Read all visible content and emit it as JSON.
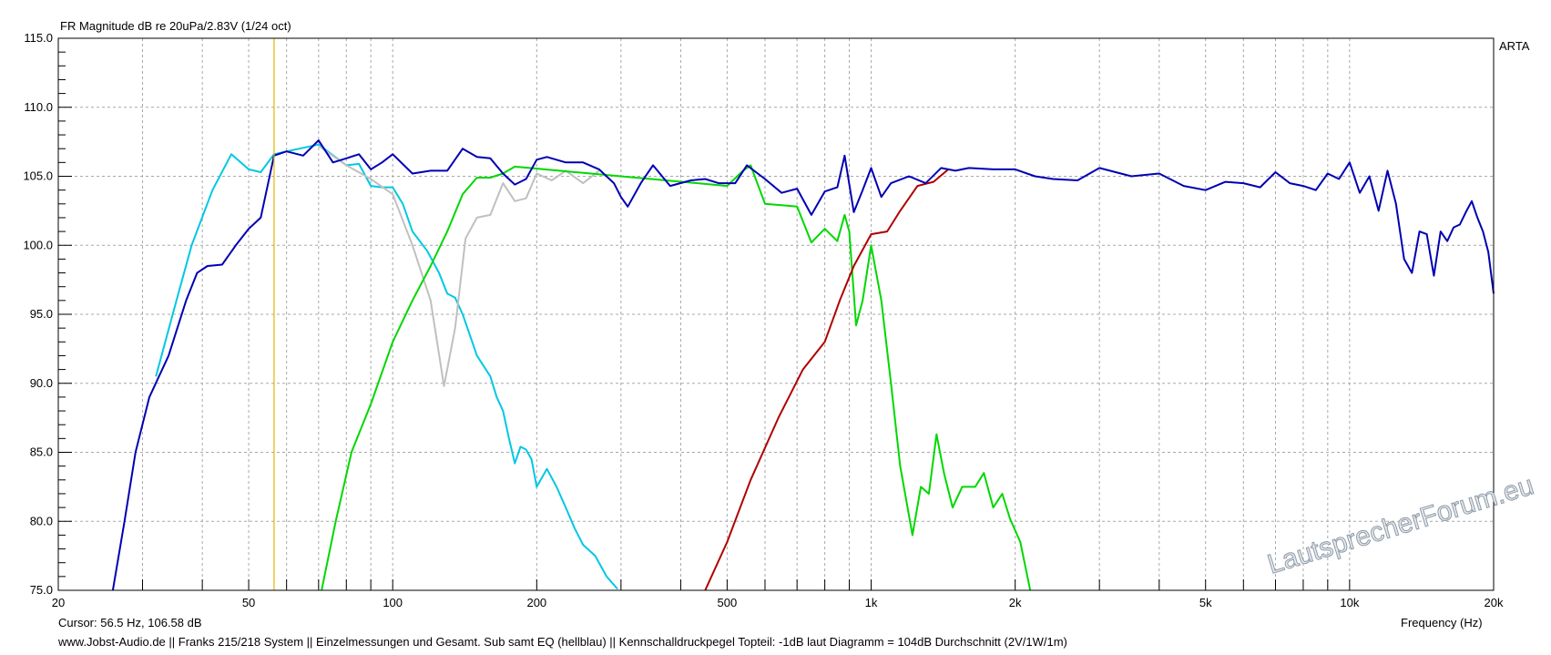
{
  "chart_data": {
    "type": "line",
    "title": "FR Magnitude dB re 20uPa/2.83V (1/24 oct)",
    "xlabel": "Frequency (Hz)",
    "ylabel": "",
    "xscale": "log",
    "xlim": [
      20,
      20000
    ],
    "ylim": [
      75,
      115
    ],
    "grid": true,
    "x_ticks": [
      20,
      50,
      100,
      200,
      500,
      1000,
      2000,
      5000,
      10000,
      20000
    ],
    "x_tick_labels": [
      "20",
      "50",
      "100",
      "200",
      "500",
      "1k",
      "2k",
      "5k",
      "10k",
      "20k"
    ],
    "y_ticks": [
      75,
      80,
      85,
      90,
      95,
      100,
      105,
      110,
      115
    ],
    "y_tick_labels": [
      "75.0",
      "80.0",
      "85.0",
      "90.0",
      "95.0",
      "100.0",
      "105.0",
      "110.0",
      "115.0"
    ],
    "cursor": {
      "x": 56.5,
      "y": 106.58
    },
    "series": [
      {
        "color": "#00c8e4",
        "points": [
          [
            32,
            90.5
          ],
          [
            35,
            95.5
          ],
          [
            38,
            100
          ],
          [
            42,
            104
          ],
          [
            46,
            106.6
          ],
          [
            50,
            105.5
          ],
          [
            53,
            105.3
          ],
          [
            56.5,
            106.6
          ],
          [
            60,
            106.8
          ],
          [
            70,
            107.3
          ],
          [
            80,
            105.8
          ],
          [
            85,
            105.9
          ],
          [
            90,
            104.3
          ],
          [
            95,
            104.2
          ],
          [
            100,
            104.2
          ],
          [
            105,
            103
          ],
          [
            110,
            101
          ],
          [
            118,
            99.6
          ],
          [
            125,
            98
          ],
          [
            130,
            96.5
          ],
          [
            135,
            96.2
          ],
          [
            140,
            95
          ],
          [
            150,
            92
          ],
          [
            160,
            90.5
          ],
          [
            165,
            89
          ],
          [
            170,
            88
          ],
          [
            175,
            86
          ],
          [
            180,
            84.2
          ],
          [
            185,
            85.4
          ],
          [
            190,
            85.2
          ],
          [
            195,
            84.5
          ],
          [
            200,
            82.5
          ],
          [
            210,
            83.8
          ],
          [
            220,
            82.5
          ],
          [
            230,
            81
          ],
          [
            240,
            79.5
          ],
          [
            250,
            78.3
          ],
          [
            265,
            77.5
          ],
          [
            280,
            76
          ],
          [
            295,
            75.1
          ]
        ]
      },
      {
        "color": "#c0c0c0",
        "points": [
          [
            70,
            107.2
          ],
          [
            80,
            105.8
          ],
          [
            90,
            104.8
          ],
          [
            100,
            103.7
          ],
          [
            110,
            100
          ],
          [
            120,
            96
          ],
          [
            128,
            89.8
          ],
          [
            135,
            94
          ],
          [
            142,
            100.5
          ],
          [
            150,
            102
          ],
          [
            160,
            102.2
          ],
          [
            170,
            104.5
          ],
          [
            180,
            103.2
          ],
          [
            190,
            103.4
          ],
          [
            200,
            105.2
          ],
          [
            215,
            104.7
          ],
          [
            230,
            105.4
          ],
          [
            250,
            104.5
          ],
          [
            270,
            105.4
          ]
        ]
      },
      {
        "color": "#00d800",
        "points": [
          [
            71,
            75
          ],
          [
            76,
            80
          ],
          [
            82,
            85
          ],
          [
            90,
            88.5
          ],
          [
            100,
            93
          ],
          [
            110,
            96
          ],
          [
            120,
            98.5
          ],
          [
            130,
            101
          ],
          [
            140,
            103.7
          ],
          [
            150,
            104.9
          ],
          [
            160,
            104.9
          ],
          [
            170,
            105.2
          ],
          [
            180,
            105.7
          ],
          [
            500,
            104.3
          ],
          [
            540,
            105.4
          ],
          [
            560,
            105.8
          ],
          [
            600,
            103
          ],
          [
            650,
            102.9
          ],
          [
            700,
            102.8
          ],
          [
            750,
            100.2
          ],
          [
            800,
            101.2
          ],
          [
            850,
            100.3
          ],
          [
            880,
            102.2
          ],
          [
            900,
            101
          ],
          [
            930,
            94.2
          ],
          [
            960,
            96
          ],
          [
            1000,
            100
          ],
          [
            1050,
            96
          ],
          [
            1100,
            90
          ],
          [
            1150,
            84
          ],
          [
            1220,
            79
          ],
          [
            1270,
            82.5
          ],
          [
            1320,
            82
          ],
          [
            1370,
            86.3
          ],
          [
            1420,
            83.5
          ],
          [
            1480,
            81
          ],
          [
            1550,
            82.5
          ],
          [
            1650,
            82.5
          ],
          [
            1720,
            83.5
          ],
          [
            1800,
            81
          ],
          [
            1880,
            82
          ],
          [
            1950,
            80.2
          ],
          [
            2050,
            78.5
          ],
          [
            2150,
            75
          ]
        ]
      },
      {
        "color": "#b00000",
        "points": [
          [
            450,
            75
          ],
          [
            500,
            78.5
          ],
          [
            560,
            83
          ],
          [
            640,
            87.5
          ],
          [
            720,
            91
          ],
          [
            800,
            93
          ],
          [
            860,
            96
          ],
          [
            920,
            98.5
          ],
          [
            1000,
            100.8
          ],
          [
            1080,
            101
          ],
          [
            1150,
            102.5
          ],
          [
            1250,
            104.3
          ],
          [
            1350,
            104.6
          ],
          [
            1450,
            105.5
          ]
        ]
      },
      {
        "color": "#0000b4",
        "points": [
          [
            26,
            75
          ],
          [
            27.5,
            80
          ],
          [
            29,
            85
          ],
          [
            31,
            89
          ],
          [
            34,
            92
          ],
          [
            37,
            96
          ],
          [
            39,
            98
          ],
          [
            41,
            98.5
          ],
          [
            44,
            98.6
          ],
          [
            47,
            100
          ],
          [
            50,
            101.2
          ],
          [
            53,
            102
          ],
          [
            56.5,
            106.5
          ],
          [
            60,
            106.8
          ],
          [
            65,
            106.5
          ],
          [
            70,
            107.6
          ],
          [
            75,
            106
          ],
          [
            80,
            106.3
          ],
          [
            85,
            106.6
          ],
          [
            90,
            105.5
          ],
          [
            95,
            106
          ],
          [
            100,
            106.6
          ],
          [
            110,
            105.2
          ],
          [
            120,
            105.4
          ],
          [
            130,
            105.4
          ],
          [
            140,
            107
          ],
          [
            150,
            106.4
          ],
          [
            160,
            106.3
          ],
          [
            170,
            105.2
          ],
          [
            180,
            104.4
          ],
          [
            190,
            104.8
          ],
          [
            200,
            106.2
          ],
          [
            210,
            106.4
          ],
          [
            230,
            106
          ],
          [
            250,
            106
          ],
          [
            270,
            105.5
          ],
          [
            290,
            104.5
          ],
          [
            300,
            103.5
          ],
          [
            310,
            102.8
          ],
          [
            330,
            104.5
          ],
          [
            350,
            105.8
          ],
          [
            380,
            104.3
          ],
          [
            420,
            104.7
          ],
          [
            450,
            104.8
          ],
          [
            480,
            104.5
          ],
          [
            520,
            104.5
          ],
          [
            550,
            105.8
          ],
          [
            600,
            104.8
          ],
          [
            650,
            103.8
          ],
          [
            700,
            104.1
          ],
          [
            750,
            102.2
          ],
          [
            800,
            103.9
          ],
          [
            850,
            104.2
          ],
          [
            880,
            106.5
          ],
          [
            920,
            102.4
          ],
          [
            960,
            104
          ],
          [
            1000,
            105.6
          ],
          [
            1050,
            103.5
          ],
          [
            1100,
            104.5
          ],
          [
            1200,
            105
          ],
          [
            1300,
            104.5
          ],
          [
            1400,
            105.6
          ],
          [
            1500,
            105.4
          ],
          [
            1600,
            105.6
          ],
          [
            1800,
            105.5
          ],
          [
            2000,
            105.5
          ],
          [
            2200,
            105
          ],
          [
            2400,
            104.8
          ],
          [
            2700,
            104.7
          ],
          [
            3000,
            105.6
          ],
          [
            3500,
            105
          ],
          [
            4000,
            105.2
          ],
          [
            4500,
            104.3
          ],
          [
            5000,
            104
          ],
          [
            5500,
            104.6
          ],
          [
            6000,
            104.5
          ],
          [
            6500,
            104.2
          ],
          [
            7000,
            105.3
          ],
          [
            7500,
            104.5
          ],
          [
            8000,
            104.3
          ],
          [
            8500,
            104
          ],
          [
            9000,
            105.2
          ],
          [
            9500,
            104.8
          ],
          [
            10000,
            106
          ],
          [
            10500,
            103.8
          ],
          [
            11000,
            105
          ],
          [
            11500,
            102.5
          ],
          [
            12000,
            105.4
          ],
          [
            12500,
            103
          ],
          [
            13000,
            99
          ],
          [
            13500,
            98
          ],
          [
            14000,
            101
          ],
          [
            14500,
            100.8
          ],
          [
            15000,
            97.8
          ],
          [
            15500,
            101
          ],
          [
            16000,
            100.3
          ],
          [
            16500,
            101.3
          ],
          [
            17000,
            101.5
          ],
          [
            17500,
            102.4
          ],
          [
            18000,
            103.2
          ],
          [
            18500,
            102
          ],
          [
            19000,
            101
          ],
          [
            19500,
            99.5
          ],
          [
            20000,
            96.5
          ]
        ]
      }
    ]
  },
  "side_label": "ARTA",
  "cursor_label": "Cursor: 56.5 Hz, 106.58 dB",
  "footer": "www.Jobst-Audio.de  ||  Franks 215/218 System  ||  Einzelmessungen und Gesamt. Sub samt EQ (hellblau)  ||  Kennschalldruckpegel Topteil: -1dB laut Diagramm  =  104dB Durchschnitt (2V/1W/1m)",
  "watermark": "LautsprecherForum.eu",
  "colors": {
    "grid": "#a8a8a8",
    "cursor": "#e8b400",
    "frame": "#000000"
  }
}
